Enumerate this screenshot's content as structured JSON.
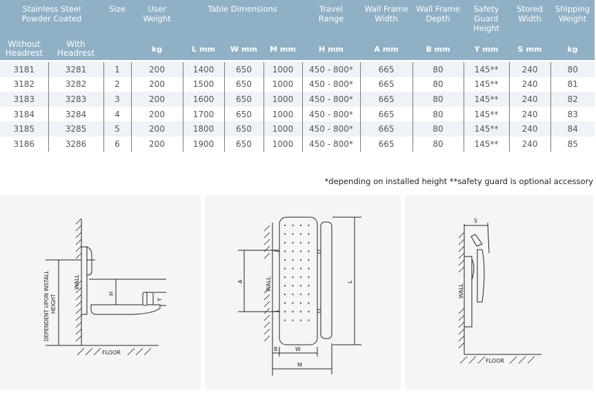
{
  "table": {
    "group_headers": {
      "material": "Stainless Steel Powder Coated",
      "size": "Size",
      "user_weight": "User Weight",
      "table_dimensions": "Table Dimensions",
      "travel_range": "Travel Range",
      "wall_frame_width": "Wall Frame Width",
      "wall_frame_depth": "Wall Frame Depth",
      "safety_guard_height": "Safety Guard Height",
      "stored_width": "Stored Width",
      "shipping_weight": "Shipping Weight"
    },
    "sub_headers": [
      "Without Headrest",
      "With Headrest",
      "",
      "kg",
      "L mm",
      "W mm",
      "M mm",
      "H mm",
      "A mm",
      "B mm",
      "Y mm",
      "S mm",
      "kg"
    ],
    "rows": [
      [
        "3181",
        "3281",
        "1",
        "200",
        "1400",
        "650",
        "1000",
        "450 - 800*",
        "665",
        "80",
        "145**",
        "240",
        "80"
      ],
      [
        "3182",
        "3282",
        "2",
        "200",
        "1500",
        "650",
        "1000",
        "450 - 800*",
        "665",
        "80",
        "145**",
        "240",
        "81"
      ],
      [
        "3183",
        "3283",
        "3",
        "200",
        "1600",
        "650",
        "1000",
        "450 - 800*",
        "665",
        "80",
        "145**",
        "240",
        "82"
      ],
      [
        "3184",
        "3284",
        "4",
        "200",
        "1700",
        "650",
        "1000",
        "450 - 800*",
        "665",
        "80",
        "145**",
        "240",
        "83"
      ],
      [
        "3185",
        "3285",
        "5",
        "200",
        "1800",
        "650",
        "1000",
        "450 - 800*",
        "665",
        "80",
        "145**",
        "240",
        "84"
      ],
      [
        "3186",
        "3286",
        "6",
        "200",
        "1900",
        "650",
        "1000",
        "450 - 800*",
        "665",
        "80",
        "145**",
        "240",
        "85"
      ]
    ]
  },
  "footnote": "*depending on installed height  **safety guard is optional accessory",
  "diagrams": {
    "side": {
      "wall": "WALL",
      "floor": "FLOOR",
      "height_label_1": "DEPENDENT UPON INSTALL",
      "height_label_2": "HEIGHT",
      "h": "H",
      "y": "Y"
    },
    "front": {
      "wall": "WALL",
      "a": "A",
      "l": "L",
      "b": "B",
      "w": "W",
      "m": "M"
    },
    "stored": {
      "wall": "WALL",
      "floor": "FLOOR",
      "s": "S"
    }
  },
  "colors": {
    "header_bg": "#8fb0c5",
    "row_alt": "#eef3f8",
    "diagram_bg": "#f3f5f7"
  }
}
